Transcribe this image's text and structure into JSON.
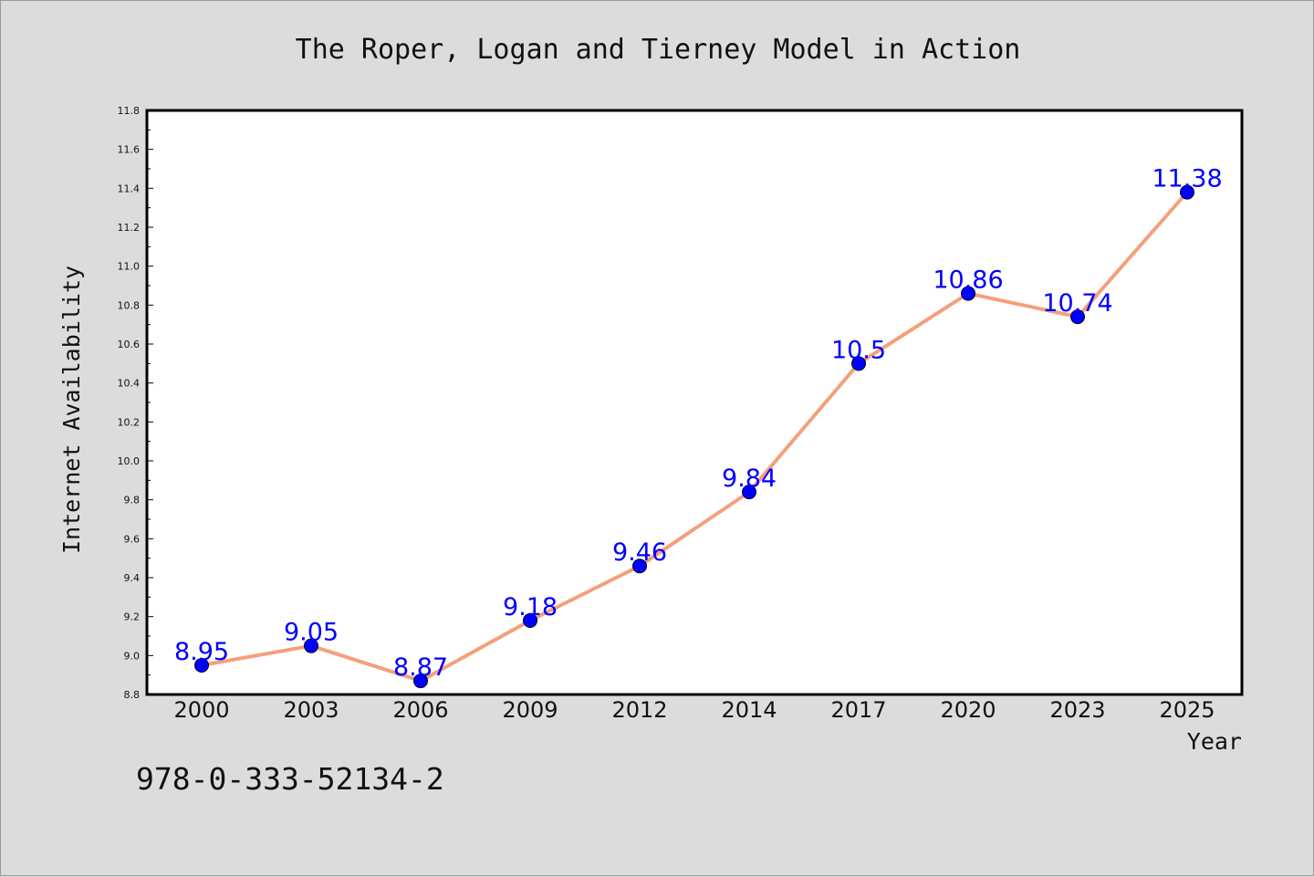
{
  "chart_data": {
    "type": "line",
    "title": "The Roper, Logan and Tierney Model in Action",
    "xlabel": "Year",
    "ylabel": "Internet Availability",
    "categories": [
      "2000",
      "2003",
      "2006",
      "2009",
      "2012",
      "2014",
      "2017",
      "2020",
      "2023",
      "2025"
    ],
    "series": [
      {
        "values": [
          8.95,
          9.05,
          8.87,
          9.18,
          9.46,
          9.84,
          10.5,
          10.86,
          10.74,
          11.38
        ],
        "data_labels": [
          "8.95",
          "9.05",
          "8.87",
          "9.18",
          "9.46",
          "9.84",
          "10.5",
          "10.86",
          "10.74",
          "11.38"
        ]
      }
    ],
    "ylim": [
      8.8,
      11.8
    ],
    "yticks": [
      "8.8",
      "9.0",
      "9.2",
      "9.4",
      "9.6",
      "9.8",
      "10.0",
      "10.2",
      "10.4",
      "10.6",
      "10.8",
      "11.0",
      "11.2",
      "11.4",
      "11.6",
      "11.8"
    ],
    "grid": false,
    "legend": "none",
    "colors": {
      "line": "#f4a07c",
      "marker": "#0000ff",
      "label": "#0000ff",
      "background": "#dcdcdc",
      "plot_background": "#ffffff"
    }
  },
  "footer": {
    "isbn": "978-0-333-52134-2"
  }
}
